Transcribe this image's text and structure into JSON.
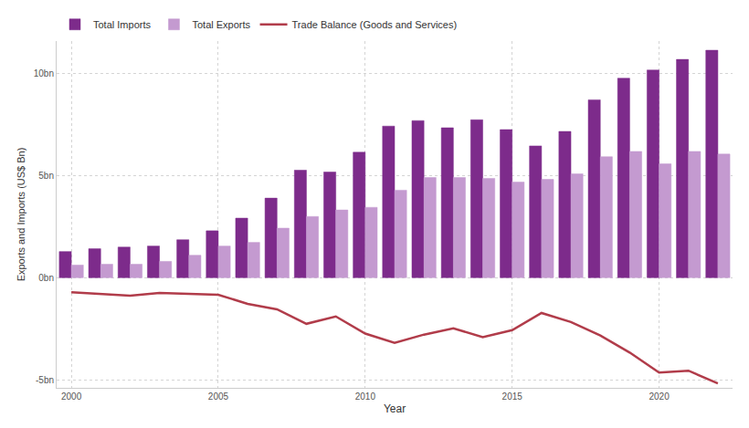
{
  "chart_data": {
    "type": "bar",
    "x_label": "Year",
    "y_label": "Exports and Imports (US$ Bn)",
    "x": [
      2000,
      2001,
      2002,
      2003,
      2004,
      2005,
      2006,
      2007,
      2008,
      2009,
      2010,
      2011,
      2012,
      2013,
      2014,
      2015,
      2016,
      2017,
      2018,
      2019,
      2020,
      2021,
      2022
    ],
    "series": [
      {
        "name": "Total Imports",
        "type": "bar",
        "color": "#7d2b8b",
        "values": [
          1.28,
          1.42,
          1.5,
          1.55,
          1.86,
          2.3,
          2.92,
          3.9,
          5.27,
          5.18,
          6.15,
          7.43,
          7.7,
          7.35,
          7.74,
          7.26,
          6.46,
          7.17,
          8.72,
          9.78,
          10.18,
          10.7,
          11.15
        ]
      },
      {
        "name": "Total Exports",
        "type": "bar",
        "color": "#c49ad0",
        "values": [
          0.62,
          0.66,
          0.66,
          0.8,
          1.1,
          1.55,
          1.73,
          2.43,
          3.0,
          3.32,
          3.45,
          4.29,
          4.91,
          4.91,
          4.87,
          4.69,
          4.82,
          5.09,
          5.93,
          6.19,
          5.58,
          6.19,
          6.06
        ]
      },
      {
        "name": "Trade Balance (Goods and Services)",
        "type": "line",
        "color": "#b13c4a",
        "values": [
          -0.71,
          -0.8,
          -0.88,
          -0.75,
          -0.8,
          -0.84,
          -1.28,
          -1.55,
          -2.26,
          -1.9,
          -2.74,
          -3.19,
          -2.79,
          -2.48,
          -2.92,
          -2.57,
          -1.73,
          -2.17,
          -2.83,
          -3.67,
          -4.65,
          -4.56,
          -5.18
        ]
      }
    ],
    "xlim": [
      1999.5,
      2022.5
    ],
    "xticks": [
      2000,
      2005,
      2010,
      2015,
      2020
    ],
    "ylim": [
      -5.4,
      11.6
    ],
    "yticks": [
      {
        "value": -5,
        "label": "-5bn"
      },
      {
        "value": 0,
        "label": "0bn"
      },
      {
        "value": 5,
        "label": "5bn"
      },
      {
        "value": 10,
        "label": "10bn"
      }
    ],
    "grid": true,
    "legend": "top left"
  }
}
